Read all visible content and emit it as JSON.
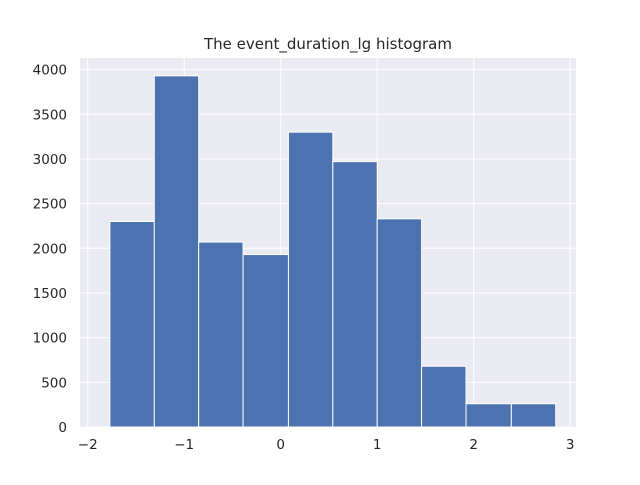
{
  "chart_data": {
    "type": "bar",
    "title": "The event_duration_lg histogram",
    "xlabel": "",
    "ylabel": "",
    "xlim": [
      -2.08,
      3.06
    ],
    "ylim": [
      0,
      4130
    ],
    "xticks": [
      -2,
      -1,
      0,
      1,
      2,
      3
    ],
    "xtick_labels": [
      "−2",
      "−1",
      "0",
      "1",
      "2",
      "3"
    ],
    "yticks": [
      0,
      500,
      1000,
      1500,
      2000,
      2500,
      3000,
      3500,
      4000
    ],
    "ytick_labels": [
      "0",
      "500",
      "1000",
      "1500",
      "2000",
      "2500",
      "3000",
      "3500",
      "4000"
    ],
    "bin_edges": [
      -1.77,
      -1.31,
      -0.85,
      -0.39,
      0.08,
      0.54,
      1.0,
      1.46,
      1.92,
      2.39,
      2.85
    ],
    "values": [
      2300,
      3930,
      2070,
      1930,
      3300,
      2970,
      2330,
      680,
      260,
      260
    ],
    "grid": true,
    "legend": "none",
    "colors": {
      "bar": "#4c72b0",
      "bar_edge": "#ffffff",
      "background": "#eaeaf2",
      "grid": "#ffffff"
    }
  }
}
